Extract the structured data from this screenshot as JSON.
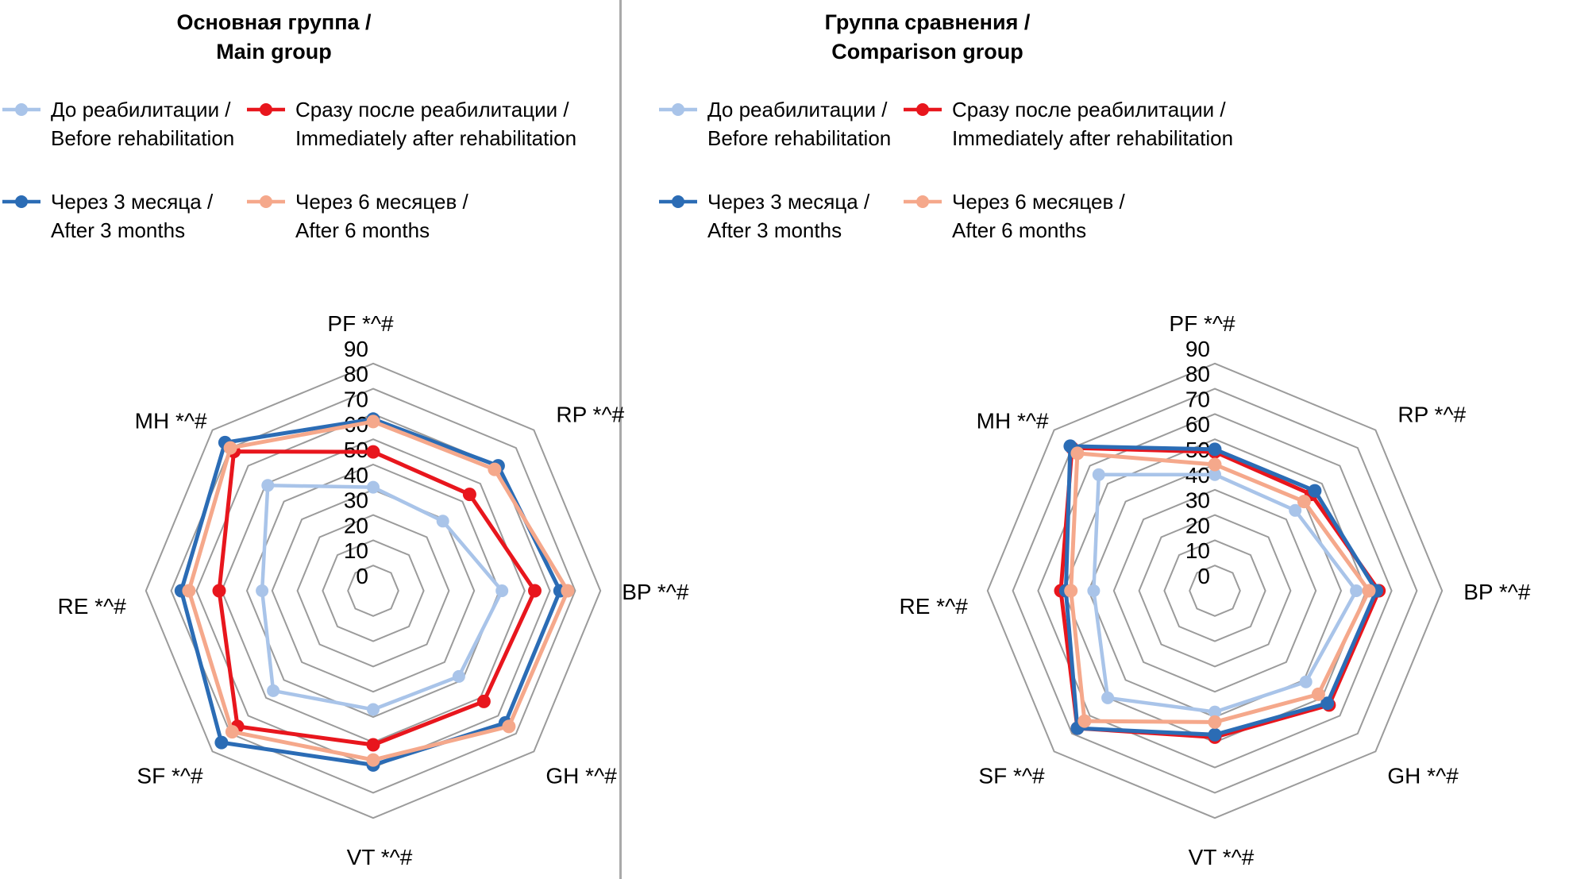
{
  "titles": {
    "left": {
      "line1": "Основная группа /",
      "line2": "Main group"
    },
    "right": {
      "line1": "Группа сравнения /",
      "line2": "Comparison group"
    }
  },
  "legend": [
    {
      "key": "before",
      "ru": "До реабилитации /",
      "en": "Before rehabilitation",
      "color": "#a9c4e9"
    },
    {
      "key": "after",
      "ru": "Сразу после реабилитации /",
      "en": "Immediately after rehabilitation",
      "color": "#e8161d"
    },
    {
      "key": "m3",
      "ru": "Через 3 месяца /",
      "en": "After 3 months",
      "color": "#2b6cb5"
    },
    {
      "key": "m6",
      "ru": "Через 6 месяцев /",
      "en": "After 6 months",
      "color": "#f5a88b"
    }
  ],
  "colors": {
    "grid": "#9b9b9b",
    "divider": "#a9a9a9",
    "text": "#000000"
  },
  "chart_data": [
    {
      "id": "main",
      "type": "line",
      "variant": "radar",
      "title": "Основная группа / Main group",
      "axes": [
        "PF *^#",
        "RP *^#",
        "BP *^#",
        "GH *^#",
        "VT *^#",
        "SF *^#",
        "RE *^#",
        "MH *^#"
      ],
      "radial_ticks": [
        0,
        10,
        20,
        30,
        40,
        50,
        60,
        70,
        80,
        90
      ],
      "rlim": [
        0,
        90
      ],
      "grid": true,
      "legend_position": "top",
      "series": [
        {
          "key": "before",
          "name": "До реабилитации / Before rehabilitation",
          "color": "#a9c4e9",
          "values": [
            41,
            39,
            51,
            48,
            47,
            56,
            44,
            59
          ]
        },
        {
          "key": "after",
          "name": "Сразу после реабилитации / Immediately after rehabilitation",
          "color": "#e8161d",
          "values": [
            55,
            54,
            64,
            62,
            61,
            76,
            61,
            78
          ]
        },
        {
          "key": "m3",
          "name": "Через 3 месяца / After 3 months",
          "color": "#2b6cb5",
          "values": [
            68,
            70,
            74,
            74,
            69,
            85,
            76,
            83
          ]
        },
        {
          "key": "m6",
          "name": "Через 6 месяцев / After 6 months",
          "color": "#f5a88b",
          "values": [
            67,
            68,
            77,
            76,
            67,
            79,
            73,
            80
          ]
        }
      ]
    },
    {
      "id": "comparison",
      "type": "line",
      "variant": "radar",
      "title": "Группа сравнения / Comparison group",
      "axes": [
        "PF *^#",
        "RP *^#",
        "BP *^#",
        "GH *^#",
        "VT *^#",
        "SF *^#",
        "RE *^#",
        "MH *^#"
      ],
      "radial_ticks": [
        0,
        10,
        20,
        30,
        40,
        50,
        60,
        70,
        80,
        90
      ],
      "rlim": [
        0,
        90
      ],
      "grid": true,
      "legend_position": "top",
      "series": [
        {
          "key": "before",
          "name": "До реабилитации / Before rehabilitation",
          "color": "#a9c4e9",
          "values": [
            46,
            45,
            56,
            51,
            48,
            60,
            48,
            65
          ]
        },
        {
          "key": "after",
          "name": "Сразу после реабилитации / Immediately after rehabilitation",
          "color": "#e8161d",
          "values": [
            55,
            54,
            65,
            64,
            58,
            77,
            61,
            80
          ]
        },
        {
          "key": "m3",
          "name": "Через 3 месяца / After 3 months",
          "color": "#2b6cb5",
          "values": [
            56,
            56,
            64,
            63,
            57,
            77,
            59,
            81
          ]
        },
        {
          "key": "m6",
          "name": "Через 6 месяцев / After 6 months",
          "color": "#f5a88b",
          "values": [
            50,
            50,
            61,
            58,
            52,
            73,
            57,
            77
          ]
        }
      ]
    }
  ]
}
